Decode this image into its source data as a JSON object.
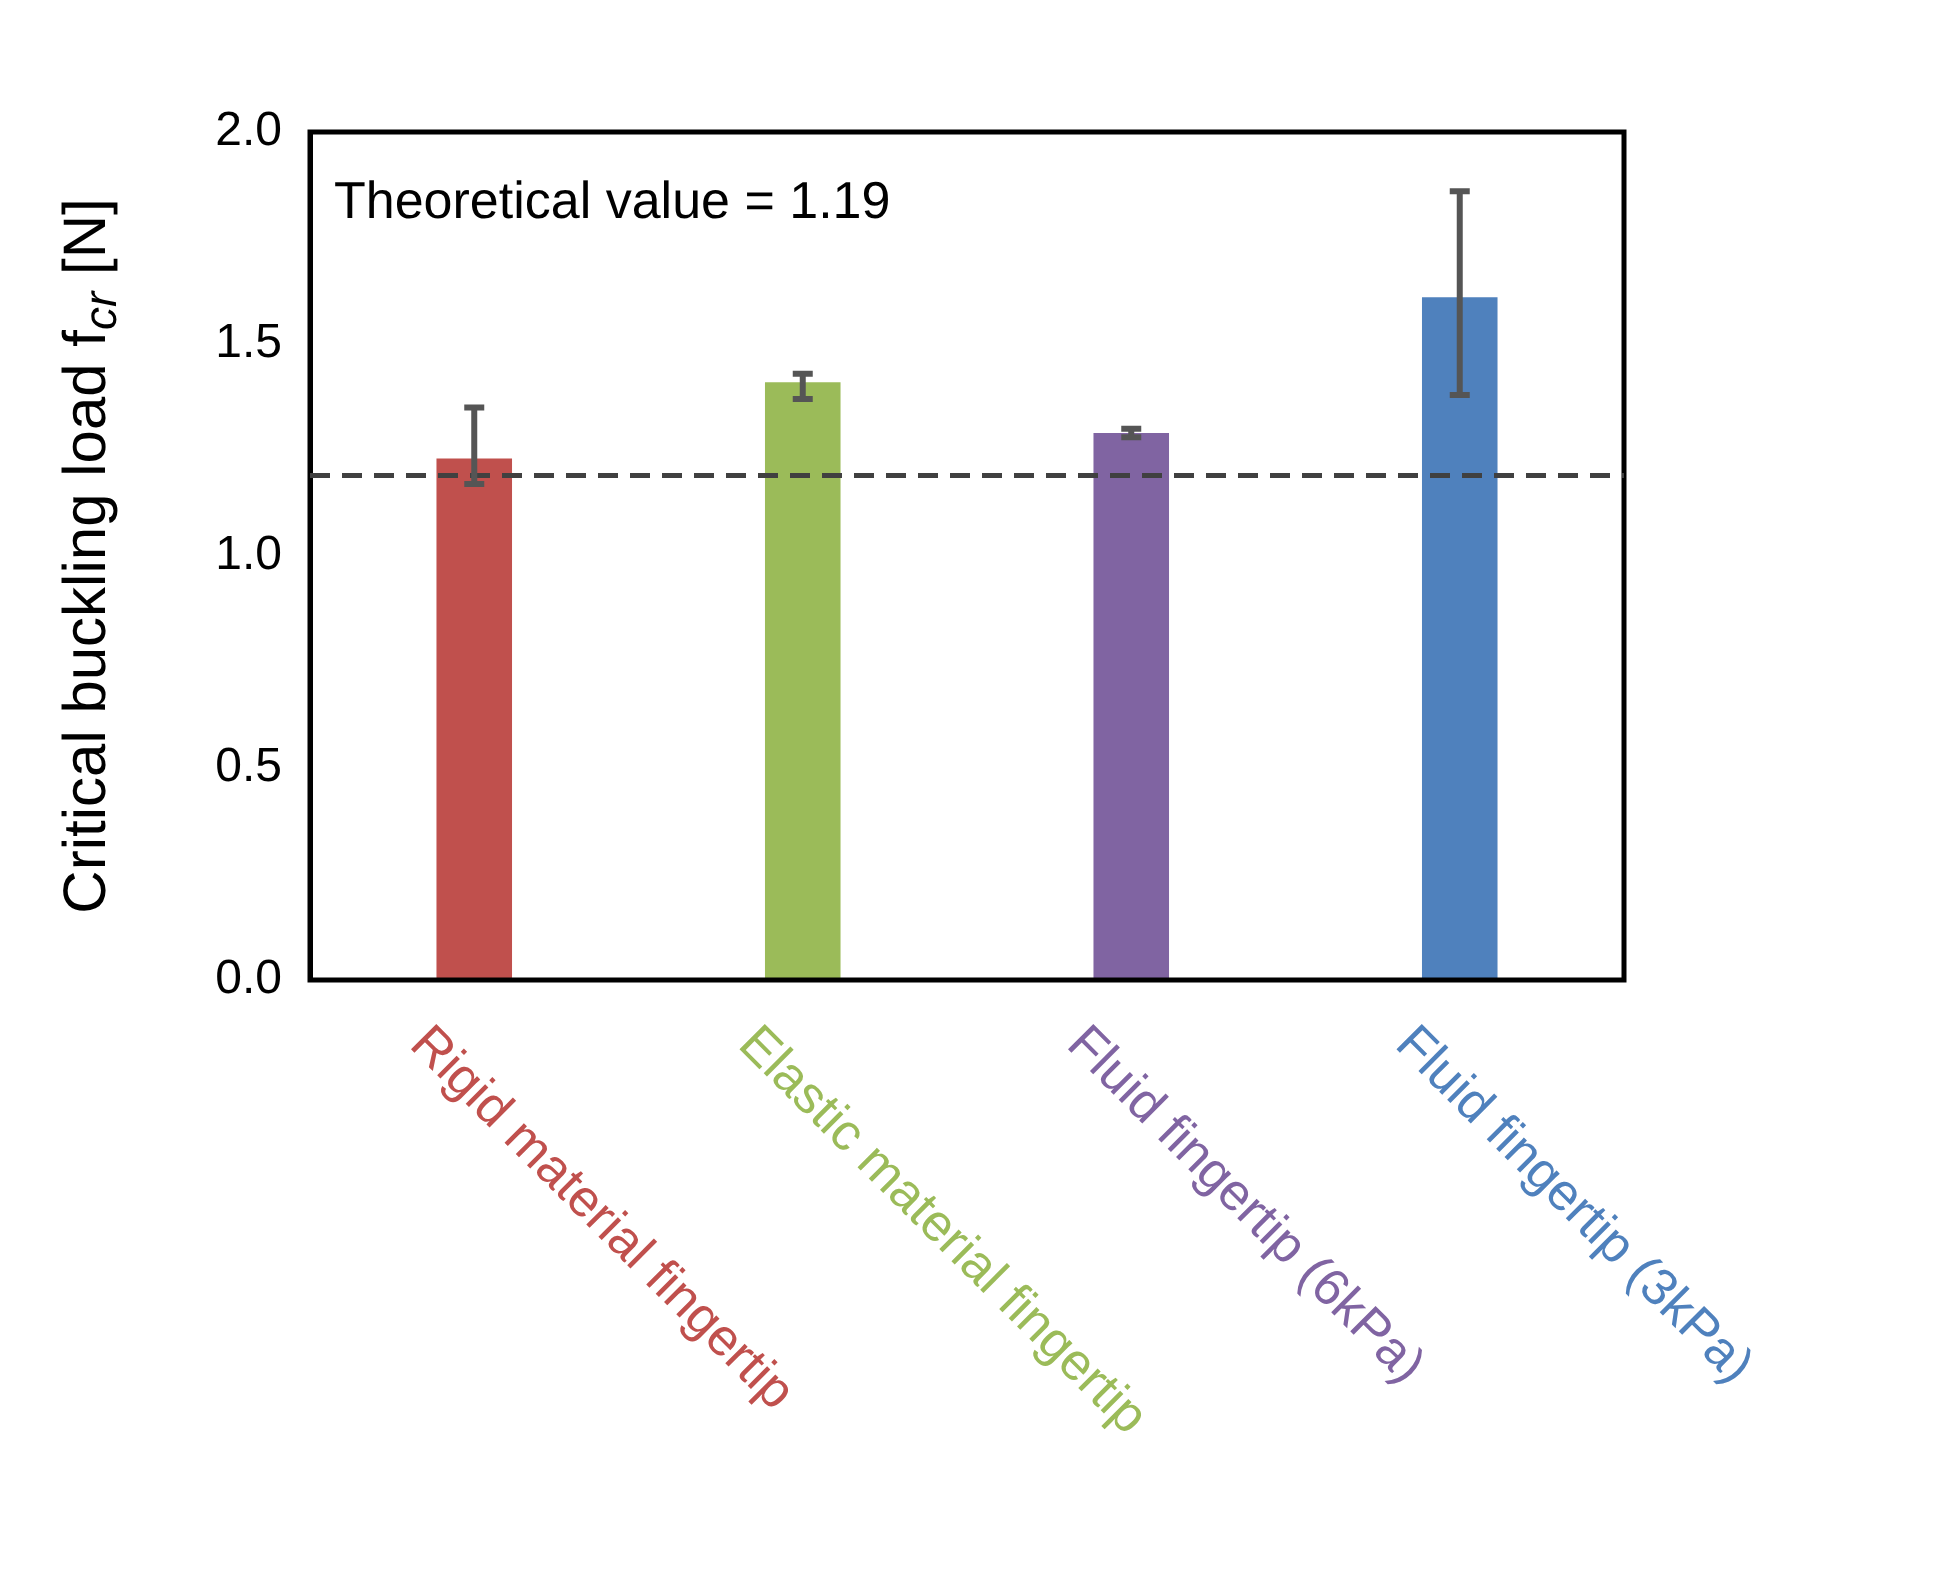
{
  "chart_data": {
    "type": "bar",
    "ylabel": "Critical buckling load f$_{cr}$ [N]",
    "categories": [
      "Rigid material fingertip",
      "Elastic material fingertip",
      "Fluid fingertip (6kPa)",
      "Fluid fingertip (3kPa)"
    ],
    "values": [
      1.23,
      1.41,
      1.29,
      1.61
    ],
    "colors": [
      "#c0504d",
      "#9bbb59",
      "#8064a2",
      "#4f81bd"
    ],
    "errors": [
      [
        1.17,
        1.35
      ],
      [
        1.37,
        1.43
      ],
      [
        1.28,
        1.3
      ],
      [
        1.38,
        1.86
      ]
    ],
    "ylim": [
      0,
      2.0
    ],
    "yticks": [
      {
        "value": 0,
        "label": "0.0"
      },
      {
        "value": 0.5,
        "label": "0.5"
      },
      {
        "value": 1,
        "label": "1.0"
      },
      {
        "value": 1.5,
        "label": "1.5"
      },
      {
        "value": 2,
        "label": "2.0"
      }
    ],
    "ref_lines": [
      {
        "axis": "y",
        "value": 1.19,
        "color": "#404040",
        "line_style": "dashed"
      }
    ],
    "annotations": [
      "Theoretical value = 1.19"
    ],
    "grid": false,
    "legend": false
  }
}
